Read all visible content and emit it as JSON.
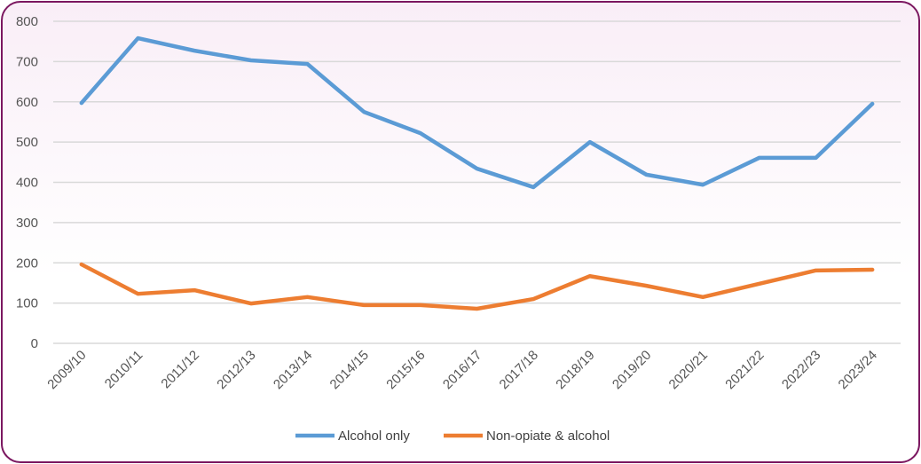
{
  "chart_data": {
    "type": "line",
    "title": "",
    "xlabel": "",
    "ylabel": "",
    "ylim": [
      0,
      800
    ],
    "yticks": [
      0,
      100,
      200,
      300,
      400,
      500,
      600,
      700,
      800
    ],
    "grid": true,
    "legend_position": "bottom",
    "categories": [
      "2009/10",
      "2010/11",
      "2011/12",
      "2012/13",
      "2013/14",
      "2014/15",
      "2015/16",
      "2016/17",
      "2017/18",
      "2018/19",
      "2019/20",
      "2020/21",
      "2021/22",
      "2022/23",
      "2023/24"
    ],
    "series": [
      {
        "name": "Alcohol only",
        "color": "#5b9bd5",
        "values": [
          597,
          758,
          727,
          703,
          694,
          575,
          522,
          434,
          388,
          500,
          419,
          394,
          461,
          461,
          595
        ]
      },
      {
        "name": "Non-opiate & alcohol",
        "color": "#ed7d31",
        "values": [
          196,
          123,
          132,
          99,
          115,
          95,
          95,
          86,
          110,
          167,
          143,
          115,
          148,
          181,
          183
        ]
      }
    ]
  }
}
